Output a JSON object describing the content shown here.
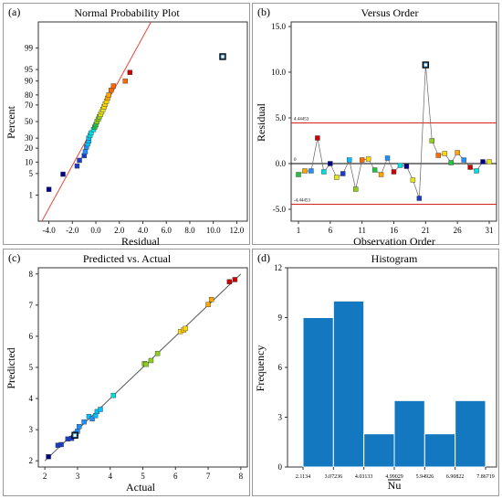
{
  "colors": {
    "fit_line": "#e8473c",
    "control_line": "#d32323",
    "diag_line": "#555555",
    "bar_fill": "#1478c0",
    "frame": "#333333",
    "ramp": [
      "#00008b",
      "#1a3cc8",
      "#1e90ff",
      "#00c0ff",
      "#00e0e0",
      "#21c441",
      "#8ed01b",
      "#e6e617",
      "#ffd700",
      "#ffa500",
      "#ff6a00",
      "#cc0000"
    ]
  },
  "chart_data": [
    {
      "id": "a",
      "panel_label": "(a)",
      "type": "scatter",
      "title": "Normal Probability Plot",
      "xlabel": "Residual",
      "ylabel": "Percent",
      "xlim": [
        -4.9,
        12.9
      ],
      "x_ticks": [
        "-4.0",
        "-2.0",
        "0.0",
        "2.0",
        "4.0",
        "6.0",
        "8.0",
        "10.0",
        "12.0"
      ],
      "x_tick_values": [
        -4,
        -2,
        0,
        2,
        4,
        6,
        8,
        10,
        12
      ],
      "y_ticks": [
        "1",
        "5",
        "10",
        "20",
        "30",
        "50",
        "70",
        "80",
        "90",
        "95",
        "99"
      ],
      "y_tick_values": [
        1,
        5,
        10,
        20,
        30,
        50,
        70,
        80,
        90,
        95,
        99
      ],
      "fit_line": [
        [
          -4.6,
          0.08
        ],
        [
          4.7,
          99.92
        ]
      ],
      "points": [
        [
          -4.0,
          1.6
        ],
        [
          -2.8,
          4.8
        ],
        [
          -1.6,
          8
        ],
        [
          -1.4,
          11
        ],
        [
          -1.0,
          14
        ],
        [
          -0.9,
          17
        ],
        [
          -0.8,
          21
        ],
        [
          -0.7,
          24
        ],
        [
          -0.6,
          27
        ],
        [
          -0.6,
          30
        ],
        [
          -0.5,
          33
        ],
        [
          -0.4,
          36
        ],
        [
          -0.2,
          40
        ],
        [
          -0.1,
          43
        ],
        [
          0.0,
          46
        ],
        [
          0.1,
          50
        ],
        [
          0.2,
          53
        ],
        [
          0.3,
          56
        ],
        [
          0.4,
          59
        ],
        [
          0.5,
          62
        ],
        [
          0.6,
          65
        ],
        [
          0.7,
          68
        ],
        [
          0.8,
          71
        ],
        [
          0.9,
          74
        ],
        [
          1.0,
          77
        ],
        [
          1.1,
          80
        ],
        [
          1.3,
          84
        ],
        [
          1.5,
          87
        ],
        [
          2.5,
          90
        ],
        [
          2.9,
          94
        ],
        [
          10.8,
          98
        ]
      ],
      "outlier_index": 30
    },
    {
      "id": "b",
      "panel_label": "(b)",
      "type": "line",
      "title": "Versus Order",
      "xlabel": "Observation Order",
      "ylabel": "Residual",
      "ylim": [
        -6.3,
        15.5
      ],
      "y_ticks": [
        "-5.0",
        "0.0",
        "5.0",
        "10.0",
        "15.0"
      ],
      "y_tick_values": [
        -5,
        0,
        5,
        10,
        15
      ],
      "x_ticks": [
        "1",
        "6",
        "11",
        "16",
        "21",
        "26",
        "31"
      ],
      "x_tick_values": [
        1,
        6,
        11,
        16,
        21,
        26,
        31
      ],
      "control_upper_label": "4.44453",
      "control_lower_label": "-4.44453",
      "control_upper": 4.44453,
      "control_lower": -4.44453,
      "center_label": "0",
      "values": [
        -1.2,
        -0.8,
        -0.8,
        2.8,
        -0.9,
        0.0,
        -1.5,
        -1.1,
        0.4,
        -2.8,
        0.4,
        0.5,
        -0.7,
        -1.2,
        0.6,
        -0.9,
        -0.2,
        -0.3,
        -1.8,
        -3.8,
        10.8,
        2.5,
        0.9,
        1.1,
        0.1,
        1.2,
        0.4,
        -0.4,
        -0.8,
        0.2,
        0.2
      ],
      "outlier_index": 20
    },
    {
      "id": "c",
      "panel_label": "(c)",
      "type": "scatter",
      "title": "Predicted vs. Actual",
      "xlabel": "Actual",
      "ylabel": "Predicted",
      "xlim": [
        1.8,
        8.2
      ],
      "ylim": [
        1.8,
        8.2
      ],
      "x_ticks": [
        "2",
        "3",
        "4",
        "5",
        "6",
        "7",
        "8"
      ],
      "x_tick_values": [
        2,
        3,
        4,
        5,
        6,
        7,
        8
      ],
      "y_ticks": [
        "2",
        "3",
        "4",
        "5",
        "6",
        "7",
        "8"
      ],
      "y_tick_values": [
        2,
        3,
        4,
        5,
        6,
        7,
        8
      ],
      "diagonal": [
        [
          2.0,
          2.0
        ],
        [
          8.0,
          8.0
        ]
      ],
      "points": [
        [
          2.11,
          2.13
        ],
        [
          2.4,
          2.5
        ],
        [
          2.5,
          2.52
        ],
        [
          2.7,
          2.7
        ],
        [
          2.82,
          2.72
        ],
        [
          2.9,
          2.8
        ],
        [
          2.95,
          2.88
        ],
        [
          3.0,
          2.95
        ],
        [
          3.05,
          3.1
        ],
        [
          3.2,
          3.25
        ],
        [
          3.35,
          3.42
        ],
        [
          3.45,
          3.35
        ],
        [
          3.55,
          3.45
        ],
        [
          3.6,
          3.58
        ],
        [
          3.7,
          3.65
        ],
        [
          4.1,
          4.1
        ],
        [
          5.05,
          5.12
        ],
        [
          5.1,
          5.1
        ],
        [
          5.25,
          5.22
        ],
        [
          5.45,
          5.45
        ],
        [
          6.15,
          6.15
        ],
        [
          6.25,
          6.2
        ],
        [
          6.3,
          6.25
        ],
        [
          7.0,
          7.02
        ],
        [
          7.1,
          7.18
        ],
        [
          7.65,
          7.75
        ],
        [
          7.82,
          7.82
        ],
        [
          2.92,
          2.82
        ]
      ],
      "hollow_index": 27
    },
    {
      "id": "d",
      "panel_label": "(d)",
      "type": "bar",
      "title": "Histogram",
      "xlabel": "Nu",
      "ylabel": "Frequency",
      "ylim": [
        0,
        12
      ],
      "y_ticks": [
        "0",
        "3",
        "6",
        "9",
        "12"
      ],
      "y_tick_values": [
        0,
        3,
        6,
        9,
        12
      ],
      "bin_edges": [
        "2.1134",
        "3.07236",
        "4.03133",
        "4.99029",
        "5.94926",
        "6.90822",
        "7.86719"
      ],
      "bin_edge_values": [
        2.1134,
        3.07236,
        4.03133,
        4.99029,
        5.94926,
        6.90822,
        7.86719
      ],
      "bin_width": 0.479482,
      "bar_starts": [
        2.1134,
        2.59288,
        3.07236,
        3.55185,
        4.03133,
        4.51081,
        4.99029,
        5.46978,
        5.94926,
        6.42874,
        6.90822,
        7.38771
      ],
      "values": [
        9,
        10,
        2,
        4,
        2,
        4
      ],
      "bar_index_start": [
        0,
        2,
        4,
        6,
        8,
        10
      ],
      "bar_span": [
        2,
        2,
        2,
        2,
        2,
        2
      ]
    }
  ]
}
